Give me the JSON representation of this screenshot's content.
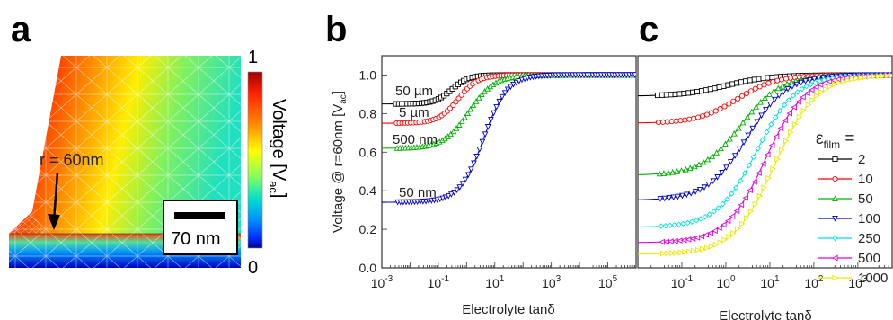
{
  "panels": {
    "a": {
      "label": "a"
    },
    "b": {
      "label": "b"
    },
    "c": {
      "label": "c"
    }
  },
  "panel_a": {
    "annotation_radius": "r = 60nm",
    "scale_bar": "70 nm",
    "colorbar": {
      "title": "Voltage [V",
      "title_sub": "ac",
      "title_end": "]",
      "max_label": "1",
      "min_label": "0",
      "colors": [
        "#a00000",
        "#ff2000",
        "#ff8c00",
        "#ffff00",
        "#80ff60",
        "#00e0d0",
        "#0090ff",
        "#0030ff",
        "#000090"
      ]
    }
  },
  "chart_data": [
    {
      "type": "line",
      "panel": "b",
      "xlabel": "Electrolyte tanδ",
      "ylabel": "Voltage @ r=60nm [V",
      "ylabel_sub": "ac",
      "ylabel_end": "]",
      "xscale": "log",
      "xlim": [
        0.001,
        1000000
      ],
      "ylim": [
        0.0,
        1.1
      ],
      "xticks": [
        {
          "value": 0.001,
          "base": "10",
          "exp": "-3"
        },
        {
          "value": 0.1,
          "base": "10",
          "exp": "-1"
        },
        {
          "value": 10,
          "base": "10",
          "exp": "1"
        },
        {
          "value": 1000,
          "base": "10",
          "exp": "3"
        },
        {
          "value": 100000,
          "base": "10",
          "exp": "5"
        }
      ],
      "yticks": [
        "0.0",
        "0.2",
        "0.4",
        "0.6",
        "0.8",
        "1.0"
      ],
      "annotations": [
        "50 µm",
        "5 µm",
        "500 nm",
        "50 nm"
      ],
      "series": [
        {
          "color": "#000000",
          "marker": "square",
          "low": 0.85,
          "center": 0.3,
          "width": 0.3
        },
        {
          "color": "#ff0000",
          "marker": "circle",
          "low": 0.75,
          "center": 0.5,
          "width": 0.35
        },
        {
          "color": "#00b000",
          "marker": "triangle-up",
          "low": 0.62,
          "center": 1.2,
          "width": 0.45
        },
        {
          "color": "#0000cc",
          "marker": "triangle-down",
          "low": 0.34,
          "center": 4.0,
          "width": 0.42
        }
      ]
    },
    {
      "type": "line",
      "panel": "c",
      "xlabel": "Electrolyte tanδ",
      "xscale": "log",
      "xlim": [
        0.01,
        6000
      ],
      "ylim": [
        0.0,
        1.1
      ],
      "xticks": [
        {
          "value": 0.1,
          "base": "10",
          "exp": "-1"
        },
        {
          "value": 1,
          "base": "10",
          "exp": "0"
        },
        {
          "value": 10,
          "base": "10",
          "exp": "1"
        },
        {
          "value": 100,
          "base": "10",
          "exp": "2"
        },
        {
          "value": 1000,
          "base": "10",
          "exp": "3"
        }
      ],
      "legend_title": "ε",
      "legend_title_sub": "film",
      "legend_title_end": " =",
      "legend_placement": "right",
      "series": [
        {
          "name": "2",
          "color": "#000000",
          "marker": "square",
          "low": 0.89,
          "center": 1.0,
          "width": 0.5
        },
        {
          "name": "10",
          "color": "#ff0000",
          "marker": "circle",
          "low": 0.75,
          "center": 1.8,
          "width": 0.45
        },
        {
          "name": "50",
          "color": "#00b000",
          "marker": "triangle-up",
          "low": 0.48,
          "center": 2.2,
          "width": 0.45
        },
        {
          "name": "100",
          "color": "#0000cc",
          "marker": "triangle-down",
          "low": 0.35,
          "center": 3.0,
          "width": 0.45
        },
        {
          "name": "250",
          "color": "#00e0e0",
          "marker": "diamond",
          "low": 0.21,
          "center": 5.0,
          "width": 0.45
        },
        {
          "name": "500",
          "color": "#e000e0",
          "marker": "triangle-left",
          "low": 0.13,
          "center": 8.0,
          "width": 0.45
        },
        {
          "name": "1000",
          "color": "#e8e800",
          "marker": "triangle-right",
          "low": 0.07,
          "center": 13.0,
          "width": 0.47
        }
      ]
    }
  ]
}
